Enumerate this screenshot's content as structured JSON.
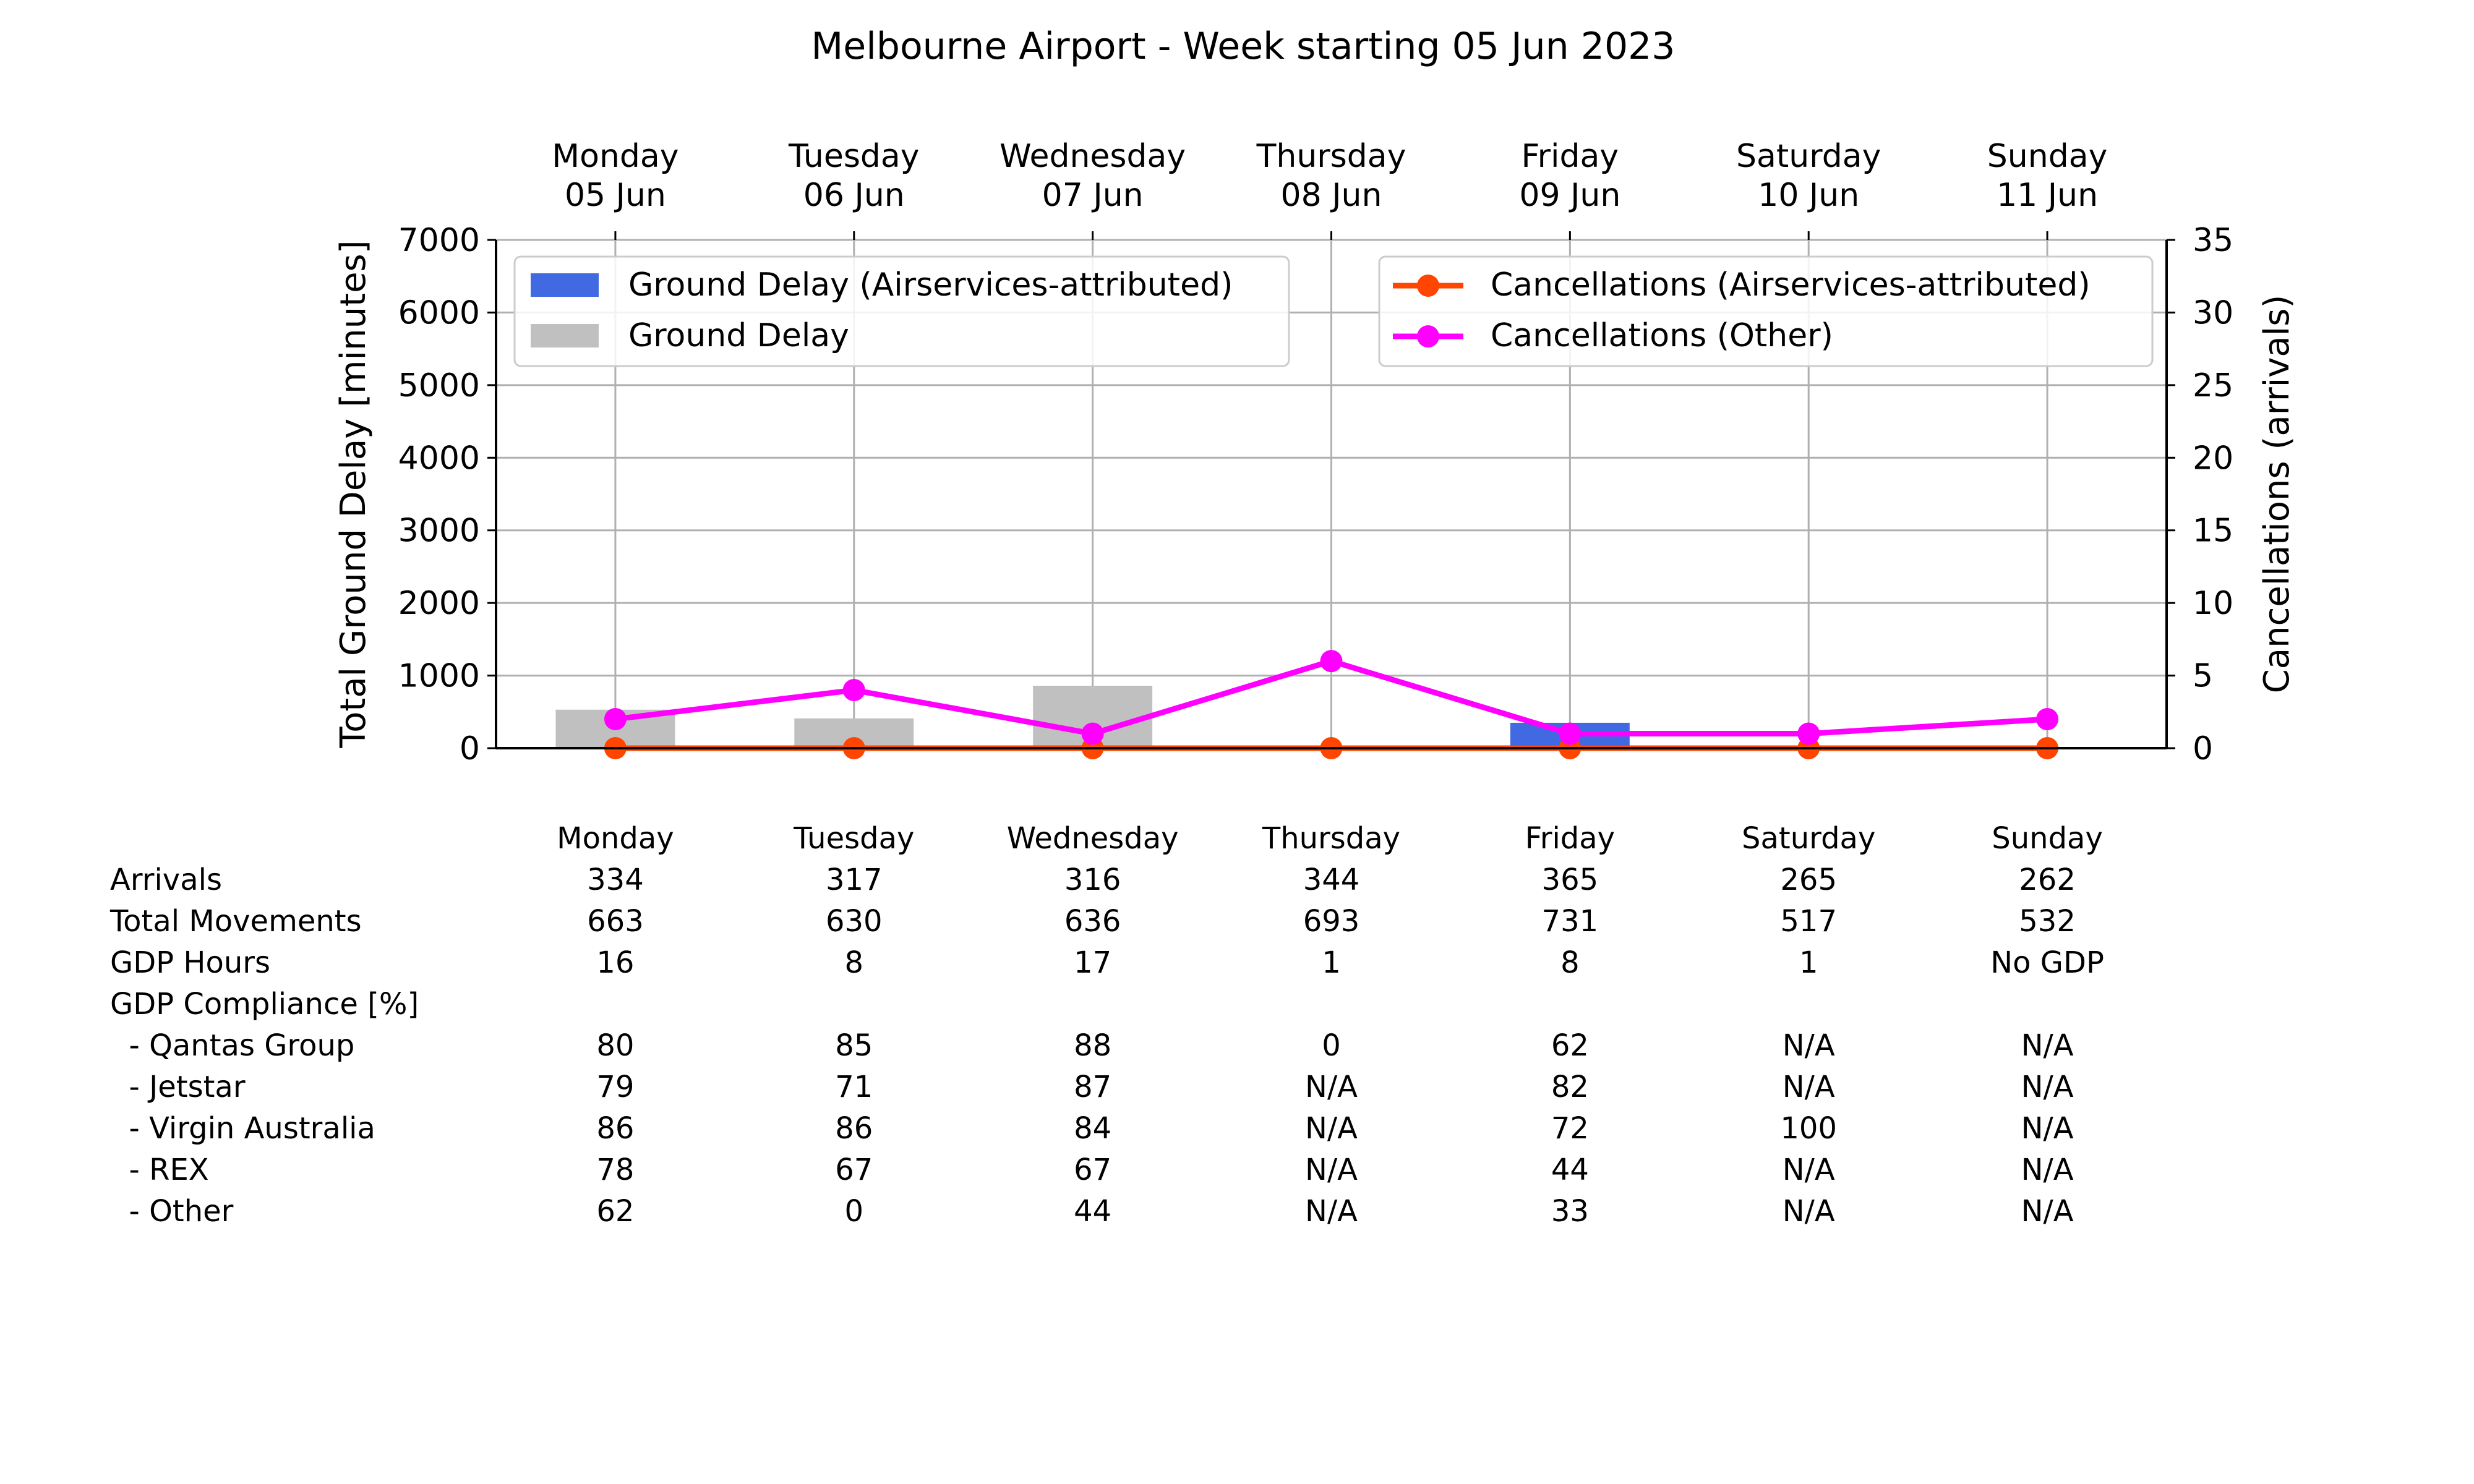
{
  "chart_data": {
    "type": "bar",
    "title": "Melbourne Airport - Week starting 05 Jun 2023",
    "categories": [
      "Monday\n05 Jun",
      "Tuesday\n06 Jun",
      "Wednesday\n07 Jun",
      "Thursday\n08 Jun",
      "Friday\n09 Jun",
      "Saturday\n10 Jun",
      "Sunday\n11 Jun"
    ],
    "day_labels": [
      {
        "day": "Monday",
        "date": "05 Jun"
      },
      {
        "day": "Tuesday",
        "date": "06 Jun"
      },
      {
        "day": "Wednesday",
        "date": "07 Jun"
      },
      {
        "day": "Thursday",
        "date": "08 Jun"
      },
      {
        "day": "Friday",
        "date": "09 Jun"
      },
      {
        "day": "Saturday",
        "date": "10 Jun"
      },
      {
        "day": "Sunday",
        "date": "11 Jun"
      }
    ],
    "ylabel": "Total Ground Delay [minutes]",
    "ylim": [
      0,
      7000
    ],
    "yticks": [
      0,
      1000,
      2000,
      3000,
      4000,
      5000,
      6000,
      7000
    ],
    "y2label": "Cancellations (arrivals)",
    "y2lim": [
      0,
      35
    ],
    "y2ticks": [
      0,
      5,
      10,
      15,
      20,
      25,
      30,
      35
    ],
    "grid": true,
    "bar_series": [
      {
        "name": "Ground Delay (Airservices-attributed)",
        "color": "#4169e1",
        "values": [
          0,
          0,
          0,
          0,
          350,
          0,
          0
        ]
      },
      {
        "name": "Ground Delay",
        "color": "#c0c0c0",
        "values": [
          530,
          410,
          860,
          0,
          0,
          0,
          0
        ]
      }
    ],
    "line_series": [
      {
        "name": "Cancellations (Airservices-attributed)",
        "color": "#ff4500",
        "axis": "right",
        "values": [
          0,
          0,
          0,
          0,
          0,
          0,
          0
        ]
      },
      {
        "name": "Cancellations (Other)",
        "color": "#ff00ff",
        "axis": "right",
        "values": [
          2,
          4,
          1,
          6,
          1,
          1,
          2
        ]
      }
    ],
    "legend_left_placement": "upper-left",
    "legend_right_placement": "upper-right"
  },
  "table": {
    "header": [
      "Monday",
      "Tuesday",
      "Wednesday",
      "Thursday",
      "Friday",
      "Saturday",
      "Sunday"
    ],
    "rows": [
      {
        "label": "Arrivals",
        "values": [
          "334",
          "317",
          "316",
          "344",
          "365",
          "265",
          "262"
        ]
      },
      {
        "label": "Total Movements",
        "values": [
          "663",
          "630",
          "636",
          "693",
          "731",
          "517",
          "532"
        ]
      },
      {
        "label": "GDP Hours",
        "values": [
          "16",
          "8",
          "17",
          "1",
          "8",
          "1",
          "No GDP"
        ]
      },
      {
        "label": "GDP Compliance [%]",
        "values": [
          "",
          "",
          "",
          "",
          "",
          "",
          ""
        ]
      },
      {
        "label": "  - Qantas Group",
        "values": [
          "80",
          "85",
          "88",
          "0",
          "62",
          "N/A",
          "N/A"
        ]
      },
      {
        "label": "  - Jetstar",
        "values": [
          "79",
          "71",
          "87",
          "N/A",
          "82",
          "N/A",
          "N/A"
        ]
      },
      {
        "label": "  - Virgin Australia",
        "values": [
          "86",
          "86",
          "84",
          "N/A",
          "72",
          "100",
          "N/A"
        ]
      },
      {
        "label": "  - REX",
        "values": [
          "78",
          "67",
          "67",
          "N/A",
          "44",
          "N/A",
          "N/A"
        ]
      },
      {
        "label": "  - Other",
        "values": [
          "62",
          "0",
          "44",
          "N/A",
          "33",
          "N/A",
          "N/A"
        ]
      }
    ]
  }
}
